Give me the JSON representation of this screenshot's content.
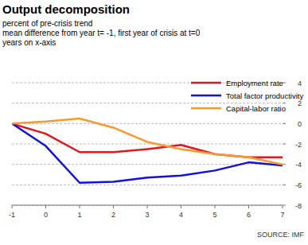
{
  "chart_data": {
    "type": "line",
    "title": "Output decomposition",
    "subtitle": [
      "percent of pre-crisis trend",
      "mean difference from year t= -1, first year of crisis at t=0",
      "years on x-axis"
    ],
    "source": "SOURCE: IMF",
    "x": [
      -1,
      0,
      1,
      2,
      3,
      4,
      5,
      6,
      7
    ],
    "xlim": [
      -1,
      7
    ],
    "xticks": [
      -1,
      0,
      1,
      2,
      3,
      4,
      5,
      6,
      7
    ],
    "ylim": [
      -8,
      4
    ],
    "yticks": [
      -8,
      -6,
      -4,
      -2,
      0,
      2,
      4
    ],
    "grid": true,
    "legend": "top-right",
    "series": [
      {
        "name": "Employment rate",
        "color": "#e8141c",
        "values": [
          0,
          -1,
          -2.8,
          -2.8,
          -2.5,
          -2.1,
          -3,
          -3.3,
          -3.3
        ]
      },
      {
        "name": "Total factor productivity",
        "color": "#1010e0",
        "values": [
          0,
          -2.2,
          -5.8,
          -5.7,
          -5.3,
          -5.1,
          -4.6,
          -3.8,
          -4.1
        ]
      },
      {
        "name": "Capital-labor ratio",
        "color": "#f59a2e",
        "values": [
          0,
          0.2,
          0.5,
          -0.4,
          -1.8,
          -2.5,
          -3.0,
          -3.3,
          -4.0
        ]
      }
    ]
  }
}
